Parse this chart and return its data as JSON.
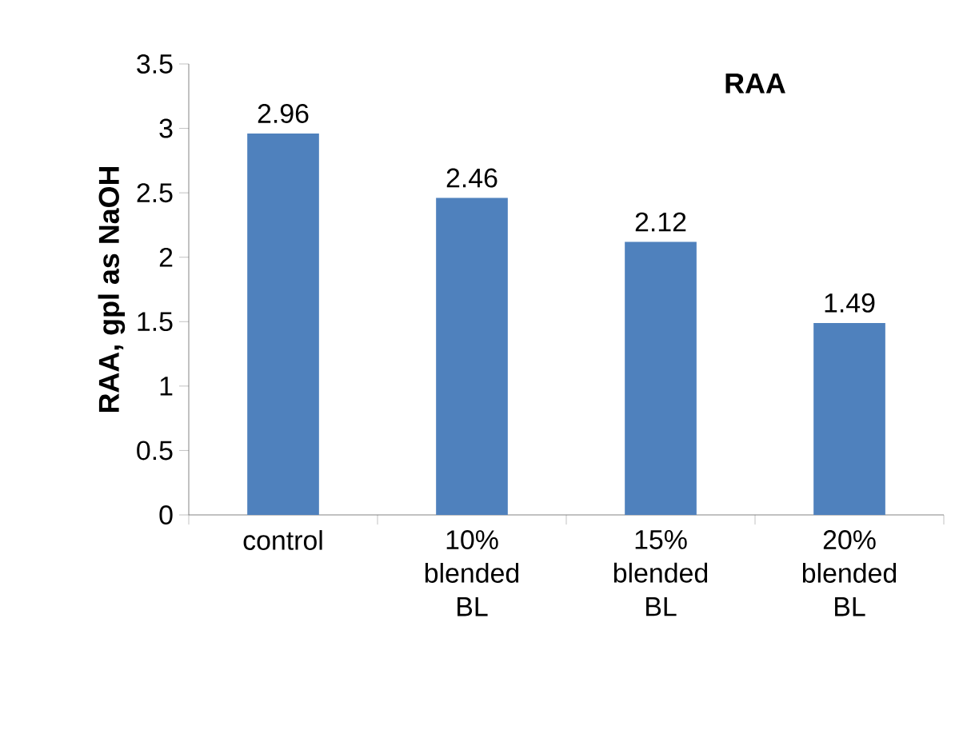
{
  "chart_data": {
    "type": "bar",
    "title": "RAA",
    "ylabel": "RAA, gpl as NaOH",
    "categories": [
      "control",
      "10% blended BL",
      "15% blended BL",
      "20% blended BL"
    ],
    "values": [
      2.96,
      2.46,
      2.12,
      1.49
    ],
    "color": "#4f81bd",
    "ylim": [
      0,
      3.5
    ],
    "yticks": [
      0,
      0.5,
      1,
      1.5,
      2,
      2.5,
      3,
      3.5
    ],
    "data_labels": true,
    "grid": false
  }
}
